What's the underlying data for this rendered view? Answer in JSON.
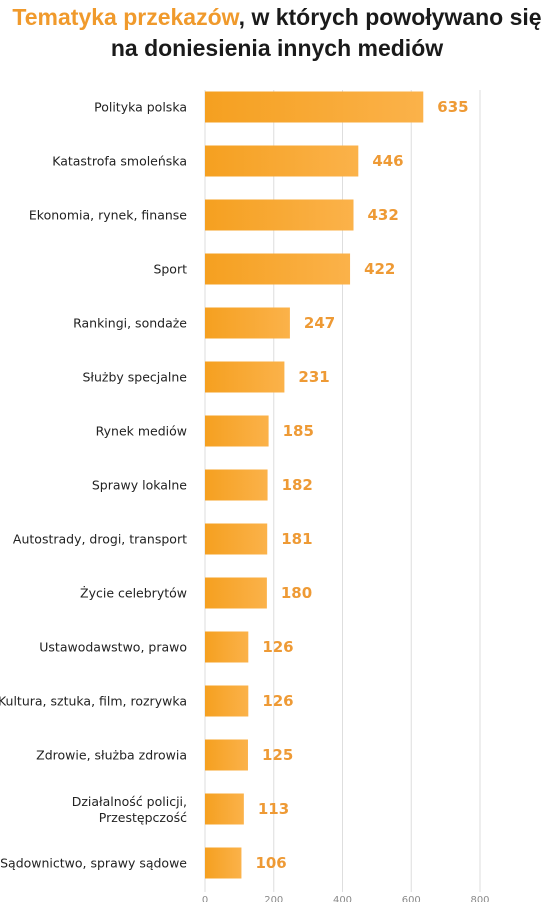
{
  "title": {
    "highlight": "Tematyka przekazów",
    "rest": ", w których powoływano się",
    "line2": "na doniesienia innych mediów"
  },
  "colors": {
    "bar": "#f5a020",
    "bar_light": "#fbb24a",
    "value_label": "#ee9a35",
    "title_highlight": "#f09a2c"
  },
  "chart_data": {
    "type": "bar",
    "orientation": "horizontal",
    "title": "Tematyka przekazów, w których powoływano się na doniesienia innych mediów",
    "categories": [
      "Polityka polska",
      "Katastrofa smoleńska",
      "Ekonomia, rynek, finanse",
      "Sport",
      "Rankingi, sondaże",
      "Służby specjalne",
      "Rynek mediów",
      "Sprawy lokalne",
      "Autostrady, drogi, transport",
      "Życie celebrytów",
      "Ustawodawstwo, prawo",
      "Kultura, sztuka, film, rozrywka",
      "Zdrowie, służba zdrowia",
      "Działalność policji, Przestępczość",
      "Sądownictwo, sprawy sądowe"
    ],
    "values": [
      635,
      446,
      432,
      422,
      247,
      231,
      185,
      182,
      181,
      180,
      126,
      126,
      125,
      113,
      106
    ],
    "xlim": [
      0,
      800
    ],
    "xticks": [
      "0",
      "200",
      "400",
      "600",
      "800"
    ],
    "grid": true,
    "legend": "none"
  }
}
